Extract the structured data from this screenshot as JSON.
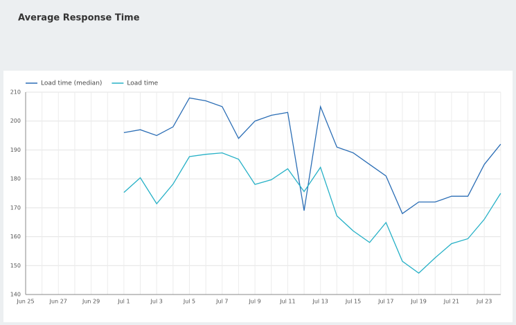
{
  "chart_data": {
    "type": "line",
    "title": "Average Response Time",
    "categories": [
      "Jun 25",
      null,
      "Jun 27",
      null,
      "Jun 29",
      null,
      "Jul 1",
      null,
      "Jul 3",
      null,
      "Jul 5",
      null,
      "Jul 7",
      null,
      "Jul 9",
      null,
      "Jul 11",
      null,
      "Jul 13",
      null,
      "Jul 15",
      null,
      "Jul 17",
      null,
      "Jul 19",
      null,
      "Jul 21",
      null,
      "Jul 23",
      null
    ],
    "series": [
      {
        "name": "Load time (median)",
        "color": "#2a6db5",
        "values": [
          null,
          null,
          null,
          null,
          null,
          null,
          196,
          197,
          195,
          198,
          208,
          207,
          205,
          194,
          200,
          202,
          203,
          169,
          205,
          191,
          189,
          185,
          181,
          168,
          172,
          172,
          174,
          174,
          185,
          192
        ]
      },
      {
        "name": "Load time",
        "color": "#25b0c6",
        "values": [
          null,
          null,
          null,
          null,
          null,
          null,
          175.3,
          180.4,
          171.4,
          178.2,
          187.7,
          188.5,
          189,
          186.8,
          178.1,
          179.7,
          183.5,
          175.6,
          184,
          167.2,
          162,
          158,
          164.9,
          151.5,
          147.4,
          152.7,
          157.6,
          159.3,
          166,
          175
        ]
      }
    ],
    "ylim": [
      140,
      210
    ],
    "yticks": [
      140,
      150,
      160,
      170,
      180,
      190,
      200,
      210
    ],
    "grid": true,
    "legend": "top-left"
  }
}
